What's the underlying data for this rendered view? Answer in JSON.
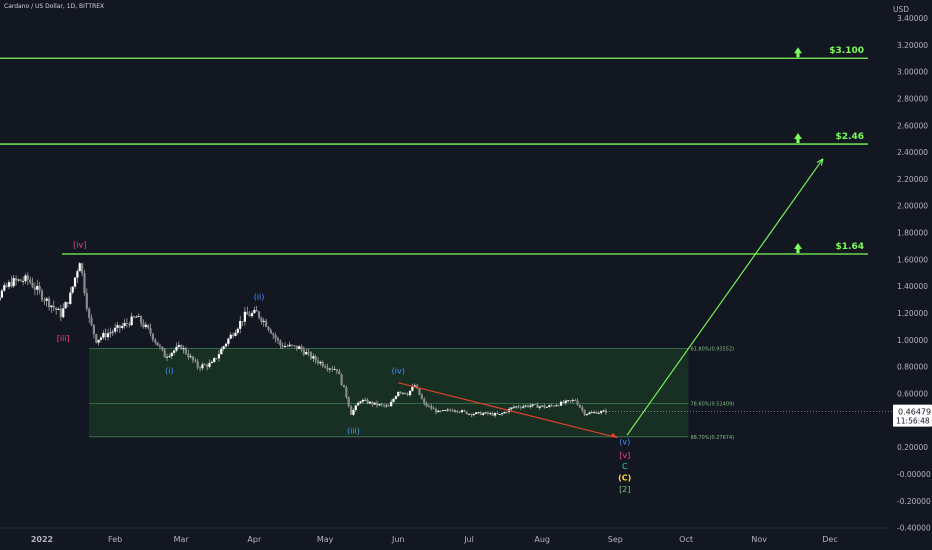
{
  "header": {
    "title": "Cardano / US Dollar, 1D, BITTREX"
  },
  "colors": {
    "background": "#131722",
    "bullish": "#ffffff",
    "green_line": "#7CFC5A",
    "red_line": "#e8402a",
    "fib_zone": "#1b3a25",
    "wave_blue": "#4a90ff",
    "wave_pink": "#ff3f8f",
    "wave_cyan": "#37c6d8",
    "wave_yellow": "#ffd23f",
    "wave_green": "#6fd36f"
  },
  "chart_data": {
    "type": "candlestick",
    "currency_label": "USD",
    "y_ticks": [
      "3.40000",
      "3.20000",
      "3.00000",
      "2.80000",
      "2.60000",
      "2.40000",
      "2.20000",
      "2.00000",
      "1.80000",
      "1.60000",
      "1.40000",
      "1.20000",
      "1.00000",
      "0.80000",
      "0.60000",
      "0.40000",
      "0.20000",
      "-0.00000",
      "-0.20000",
      "-0.40000"
    ],
    "ylim": [
      -0.4,
      3.5
    ],
    "x_ticks": [
      "2022",
      "Feb",
      "Mar",
      "Apr",
      "May",
      "Jun",
      "Jul",
      "Aug",
      "Sep",
      "Oct",
      "Nov",
      "Dec"
    ],
    "x_tick_dates": [
      "2022-01-01",
      "2022-02-01",
      "2022-03-01",
      "2022-04-01",
      "2022-05-01",
      "2022-06-01",
      "2022-07-01",
      "2022-08-01",
      "2022-09-01",
      "2022-10-01",
      "2022-11-01",
      "2022-12-01"
    ],
    "price_path": [
      [
        "2021-12-05",
        1.35
      ],
      [
        "2021-12-12",
        1.3
      ],
      [
        "2021-12-19",
        1.43
      ],
      [
        "2021-12-26",
        1.45
      ],
      [
        "2022-01-02",
        1.31
      ],
      [
        "2022-01-09",
        1.19
      ],
      [
        "2022-01-13",
        1.33
      ],
      [
        "2022-01-17",
        1.6
      ],
      [
        "2022-01-21",
        1.15
      ],
      [
        "2022-01-24",
        1.0
      ],
      [
        "2022-01-28",
        1.04
      ],
      [
        "2022-02-04",
        1.1
      ],
      [
        "2022-02-10",
        1.17
      ],
      [
        "2022-02-16",
        1.05
      ],
      [
        "2022-02-22",
        0.88
      ],
      [
        "2022-03-01",
        0.95
      ],
      [
        "2022-03-08",
        0.8
      ],
      [
        "2022-03-14",
        0.82
      ],
      [
        "2022-03-20",
        0.98
      ],
      [
        "2022-03-28",
        1.18
      ],
      [
        "2022-04-02",
        1.2
      ],
      [
        "2022-04-06",
        1.12
      ],
      [
        "2022-04-12",
        0.96
      ],
      [
        "2022-04-20",
        0.94
      ],
      [
        "2022-04-26",
        0.86
      ],
      [
        "2022-05-02",
        0.8
      ],
      [
        "2022-05-06",
        0.78
      ],
      [
        "2022-05-10",
        0.58
      ],
      [
        "2022-05-12",
        0.45
      ],
      [
        "2022-05-16",
        0.55
      ],
      [
        "2022-05-22",
        0.52
      ],
      [
        "2022-05-28",
        0.5
      ],
      [
        "2022-06-01",
        0.62
      ],
      [
        "2022-06-05",
        0.6
      ],
      [
        "2022-06-08",
        0.66
      ],
      [
        "2022-06-12",
        0.52
      ],
      [
        "2022-06-18",
        0.46
      ],
      [
        "2022-06-25",
        0.48
      ],
      [
        "2022-07-01",
        0.45
      ],
      [
        "2022-07-08",
        0.45
      ],
      [
        "2022-07-14",
        0.44
      ],
      [
        "2022-07-20",
        0.5
      ],
      [
        "2022-07-27",
        0.51
      ],
      [
        "2022-08-03",
        0.5
      ],
      [
        "2022-08-10",
        0.53
      ],
      [
        "2022-08-15",
        0.55
      ],
      [
        "2022-08-19",
        0.45
      ],
      [
        "2022-08-24",
        0.46
      ],
      [
        "2022-08-28",
        0.465
      ]
    ],
    "current_price": "0.46479",
    "countdown": "11:56:48",
    "targets": [
      {
        "label": "$3.100",
        "value": 3.1
      },
      {
        "label": "$2.46",
        "value": 2.46
      },
      {
        "label": "$1.64",
        "value": 1.64
      }
    ],
    "fib_levels": [
      {
        "label": "61.80%(0.93552)",
        "value": 0.93552
      },
      {
        "label": "78.60%(0.52409)",
        "value": 0.52409
      },
      {
        "label": "88.70%(0.27674)",
        "value": 0.27674
      }
    ],
    "wave_labels": [
      {
        "text": "[iv]",
        "color": "pink",
        "date": "2022-01-17",
        "price": 1.69
      },
      {
        "text": "[iii]",
        "color": "pink",
        "date": "2022-01-10",
        "price": 0.99
      },
      {
        "text": "(i)",
        "color": "blue",
        "date": "2022-02-24",
        "price": 0.75
      },
      {
        "text": "(ii)",
        "color": "blue",
        "date": "2022-04-03",
        "price": 1.3
      },
      {
        "text": "(iii)",
        "color": "blue",
        "date": "2022-05-13",
        "price": 0.3
      },
      {
        "text": "(iv)",
        "color": "blue",
        "date": "2022-06-01",
        "price": 0.75
      },
      {
        "text": "(v)",
        "color": "blue",
        "date": "2022-09-05",
        "price": 0.22
      },
      {
        "text": "[v]",
        "color": "pink",
        "date": "2022-09-05",
        "price": 0.12
      },
      {
        "text": "C",
        "color": "cyan",
        "date": "2022-09-05",
        "price": 0.035
      },
      {
        "text": "(C)",
        "color": "yellow",
        "date": "2022-09-05",
        "price": -0.05
      },
      {
        "text": "[2]",
        "color": "green",
        "date": "2022-09-05",
        "price": -0.135
      }
    ],
    "projection": {
      "from": [
        "2022-09-06",
        0.29
      ],
      "to": [
        "2022-11-28",
        2.35
      ]
    },
    "red_trend": {
      "from": [
        "2022-06-01",
        0.68
      ],
      "to": [
        "2022-09-02",
        0.27
      ]
    },
    "fib_zone": {
      "from_date": "2022-01-21",
      "to_date": "2022-10-02",
      "top": 0.93552,
      "bottom": 0.27674
    }
  }
}
